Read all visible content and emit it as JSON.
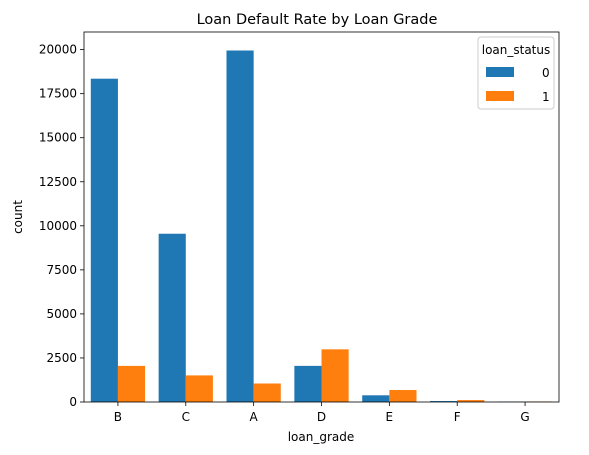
{
  "chart_data": {
    "type": "bar",
    "title": "Loan Default Rate by Loan Grade",
    "xlabel": "loan_grade",
    "ylabel": "count",
    "categories": [
      "B",
      "C",
      "A",
      "D",
      "E",
      "F",
      "G"
    ],
    "ylim": [
      0,
      21000
    ],
    "yticks": [
      0,
      2500,
      5000,
      7500,
      10000,
      12500,
      15000,
      17500,
      20000
    ],
    "grid": false,
    "legend": {
      "title": "loan_status",
      "placement": "top-right"
    },
    "series": [
      {
        "name": "0",
        "color": "#1f77b4",
        "values": [
          18350,
          9550,
          19950,
          2050,
          380,
          55,
          20
        ]
      },
      {
        "name": "1",
        "color": "#ff7f0e",
        "values": [
          2050,
          1510,
          1050,
          2990,
          680,
          110,
          30
        ]
      }
    ]
  }
}
